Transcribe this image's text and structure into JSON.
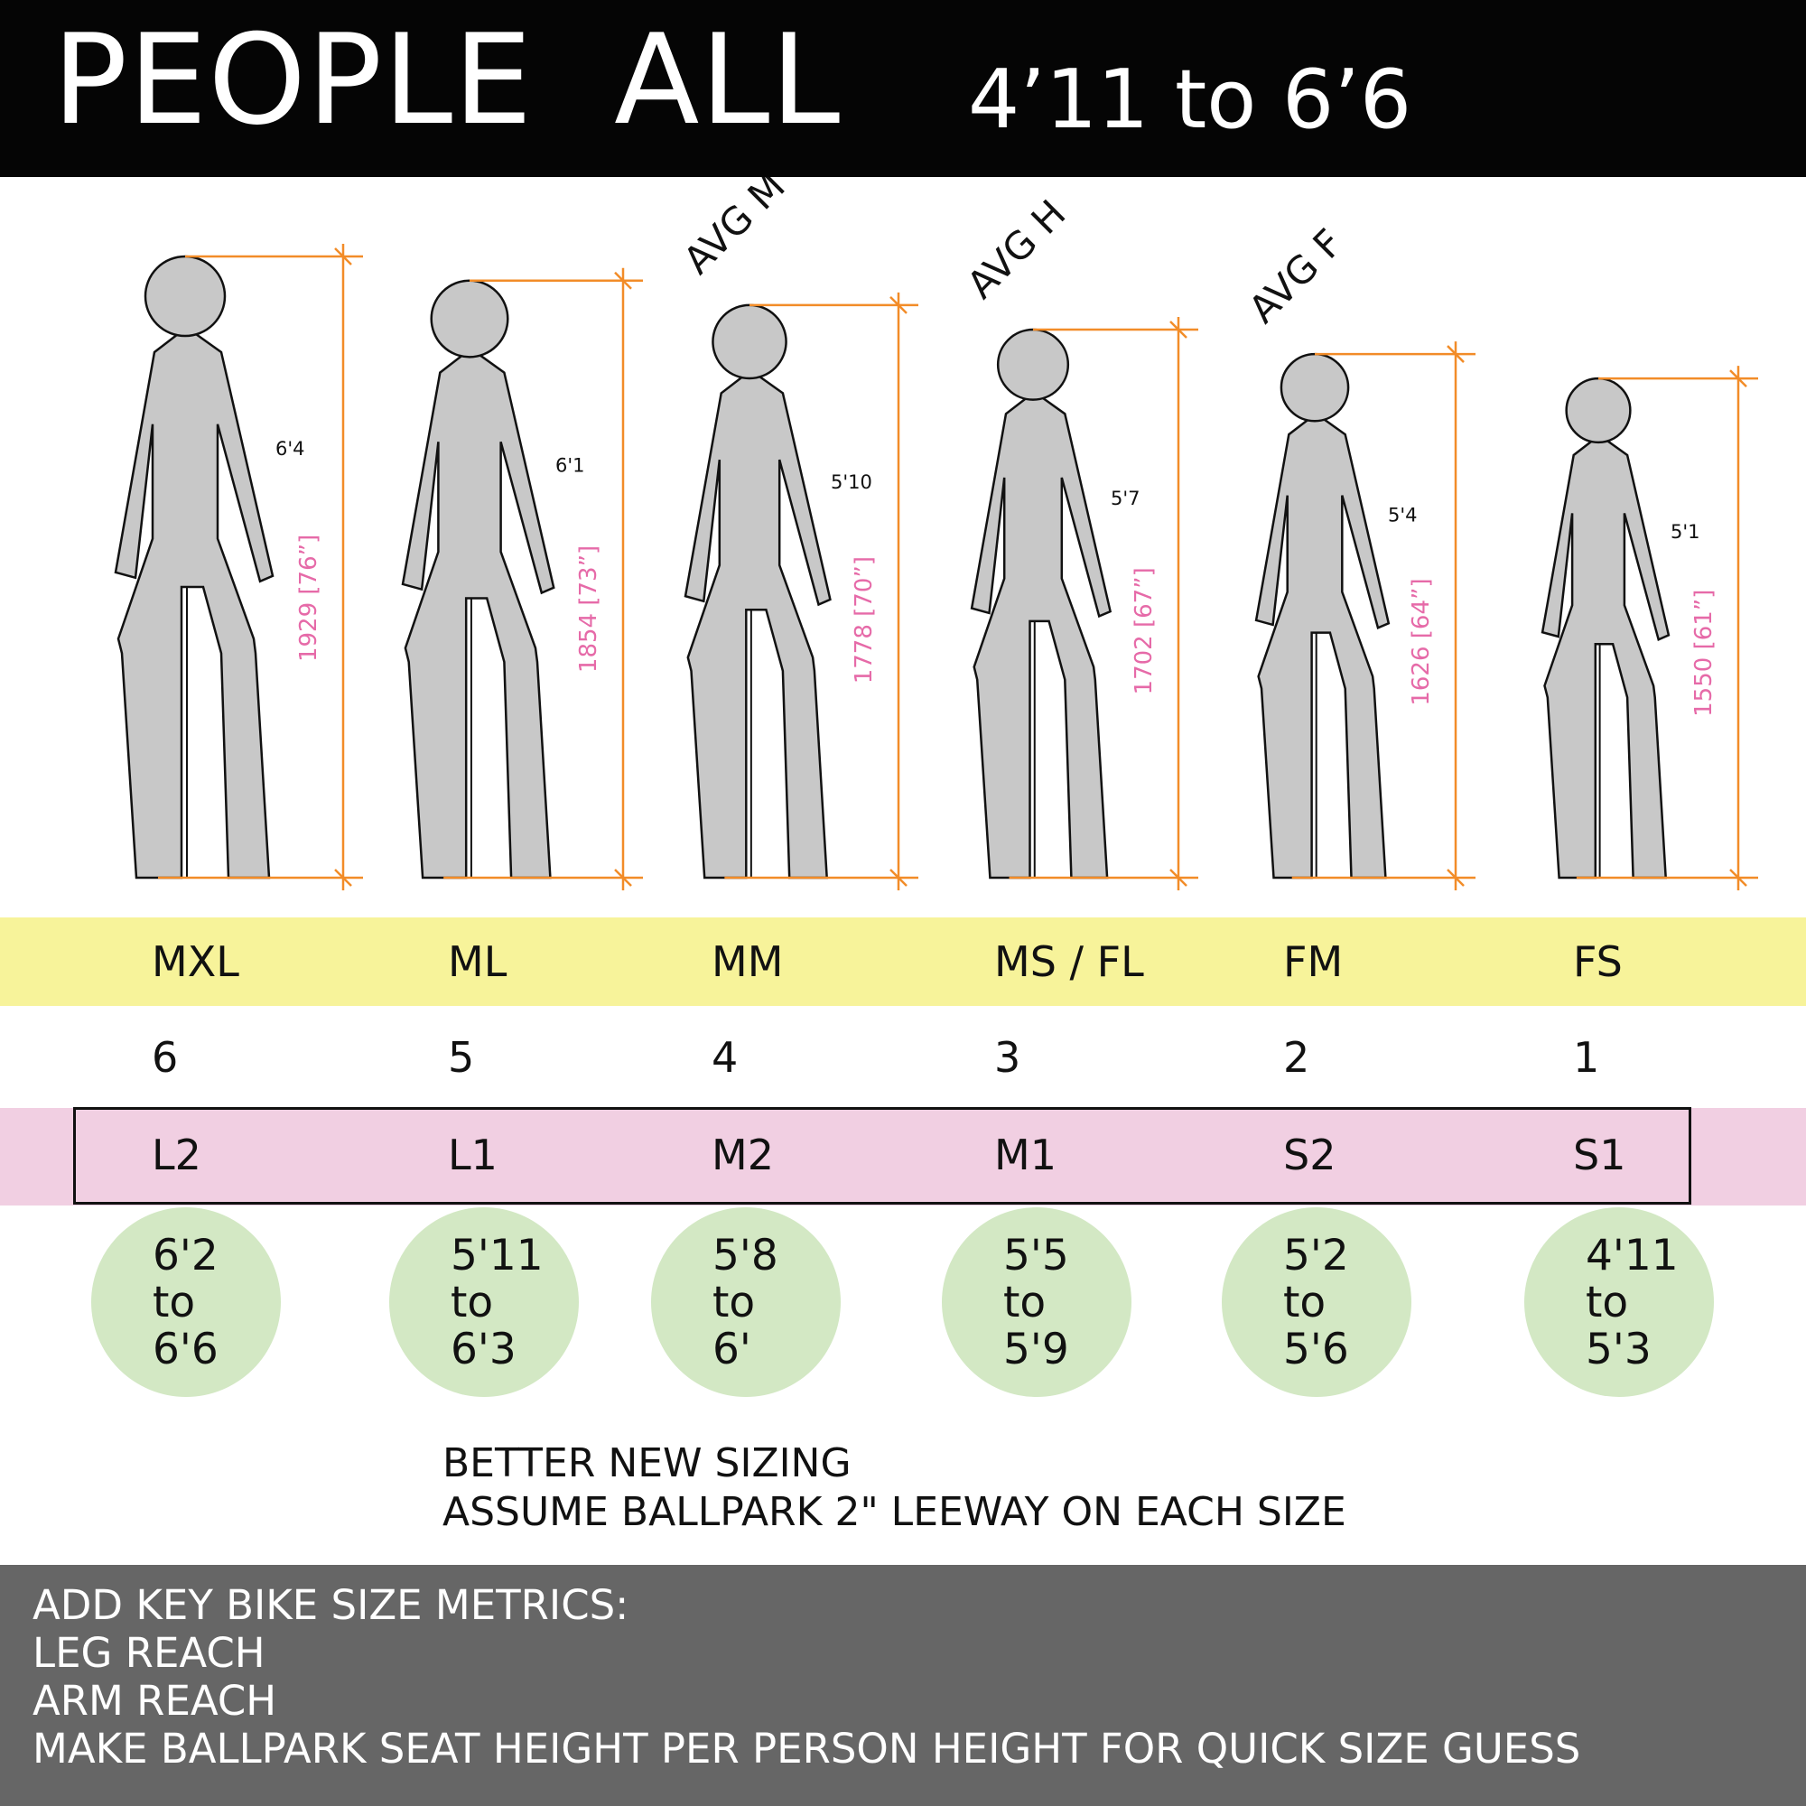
{
  "header": {
    "title": "PEOPLE  ALL",
    "range": "4’11 to 6’6"
  },
  "figures": [
    {
      "height_ft": "6'4",
      "dim_label": "1929  [76”]",
      "height_mm": 1929,
      "tag": ""
    },
    {
      "height_ft": "6'1",
      "dim_label": "1854  [73”]",
      "height_mm": 1854,
      "tag": ""
    },
    {
      "height_ft": "5'10",
      "dim_label": "1778  [70”]",
      "height_mm": 1778,
      "tag": "AVG M"
    },
    {
      "height_ft": "5'7",
      "dim_label": "1702  [67”]",
      "height_mm": 1702,
      "tag": "AVG H"
    },
    {
      "height_ft": "5'4",
      "dim_label": "1626  [64”]",
      "height_mm": 1626,
      "tag": "AVG F"
    },
    {
      "height_ft": "5'1",
      "dim_label": "1550  [61”]",
      "height_mm": 1550,
      "tag": ""
    }
  ],
  "sizes": [
    "MXL",
    "ML",
    "MM",
    "MS / FL",
    "FM",
    "FS"
  ],
  "numbers": [
    "6",
    "5",
    "4",
    "3",
    "2",
    "1"
  ],
  "codes": [
    "L2",
    "L1",
    "M2",
    "M1",
    "S2",
    "S1"
  ],
  "ranges": [
    {
      "from": "6'2",
      "to_word": "to",
      "to": "6'6"
    },
    {
      "from": "5'11",
      "to_word": "to",
      "to": "6'3"
    },
    {
      "from": "5'8",
      "to_word": "to",
      "to": "6'"
    },
    {
      "from": "5'5",
      "to_word": "to",
      "to": "5'9"
    },
    {
      "from": "5'2",
      "to_word": "to",
      "to": "5'6"
    },
    {
      "from": "4'11",
      "to_word": "to",
      "to": "5'3"
    }
  ],
  "note": {
    "line1": "BETTER NEW SIZING",
    "line2": "ASSUME BALLPARK 2\" LEEWAY ON EACH SIZE"
  },
  "footer": {
    "line1": "ADD KEY BIKE SIZE METRICS:",
    "line2": "LEG REACH",
    "line3": "ARM REACH",
    "line4": "MAKE BALLPARK SEAT HEIGHT PER PERSON HEIGHT FOR QUICK SIZE GUESS"
  },
  "colors": {
    "header_bg": "#050505",
    "figure_fill": "#c8c8c8",
    "dimension_line": "#f28c28",
    "dimension_text": "#e66aa8",
    "size_band": "#f7f39a",
    "code_band": "#f1cfe2",
    "range_circle": "#d3e8c4",
    "footer_bg": "#666666"
  }
}
